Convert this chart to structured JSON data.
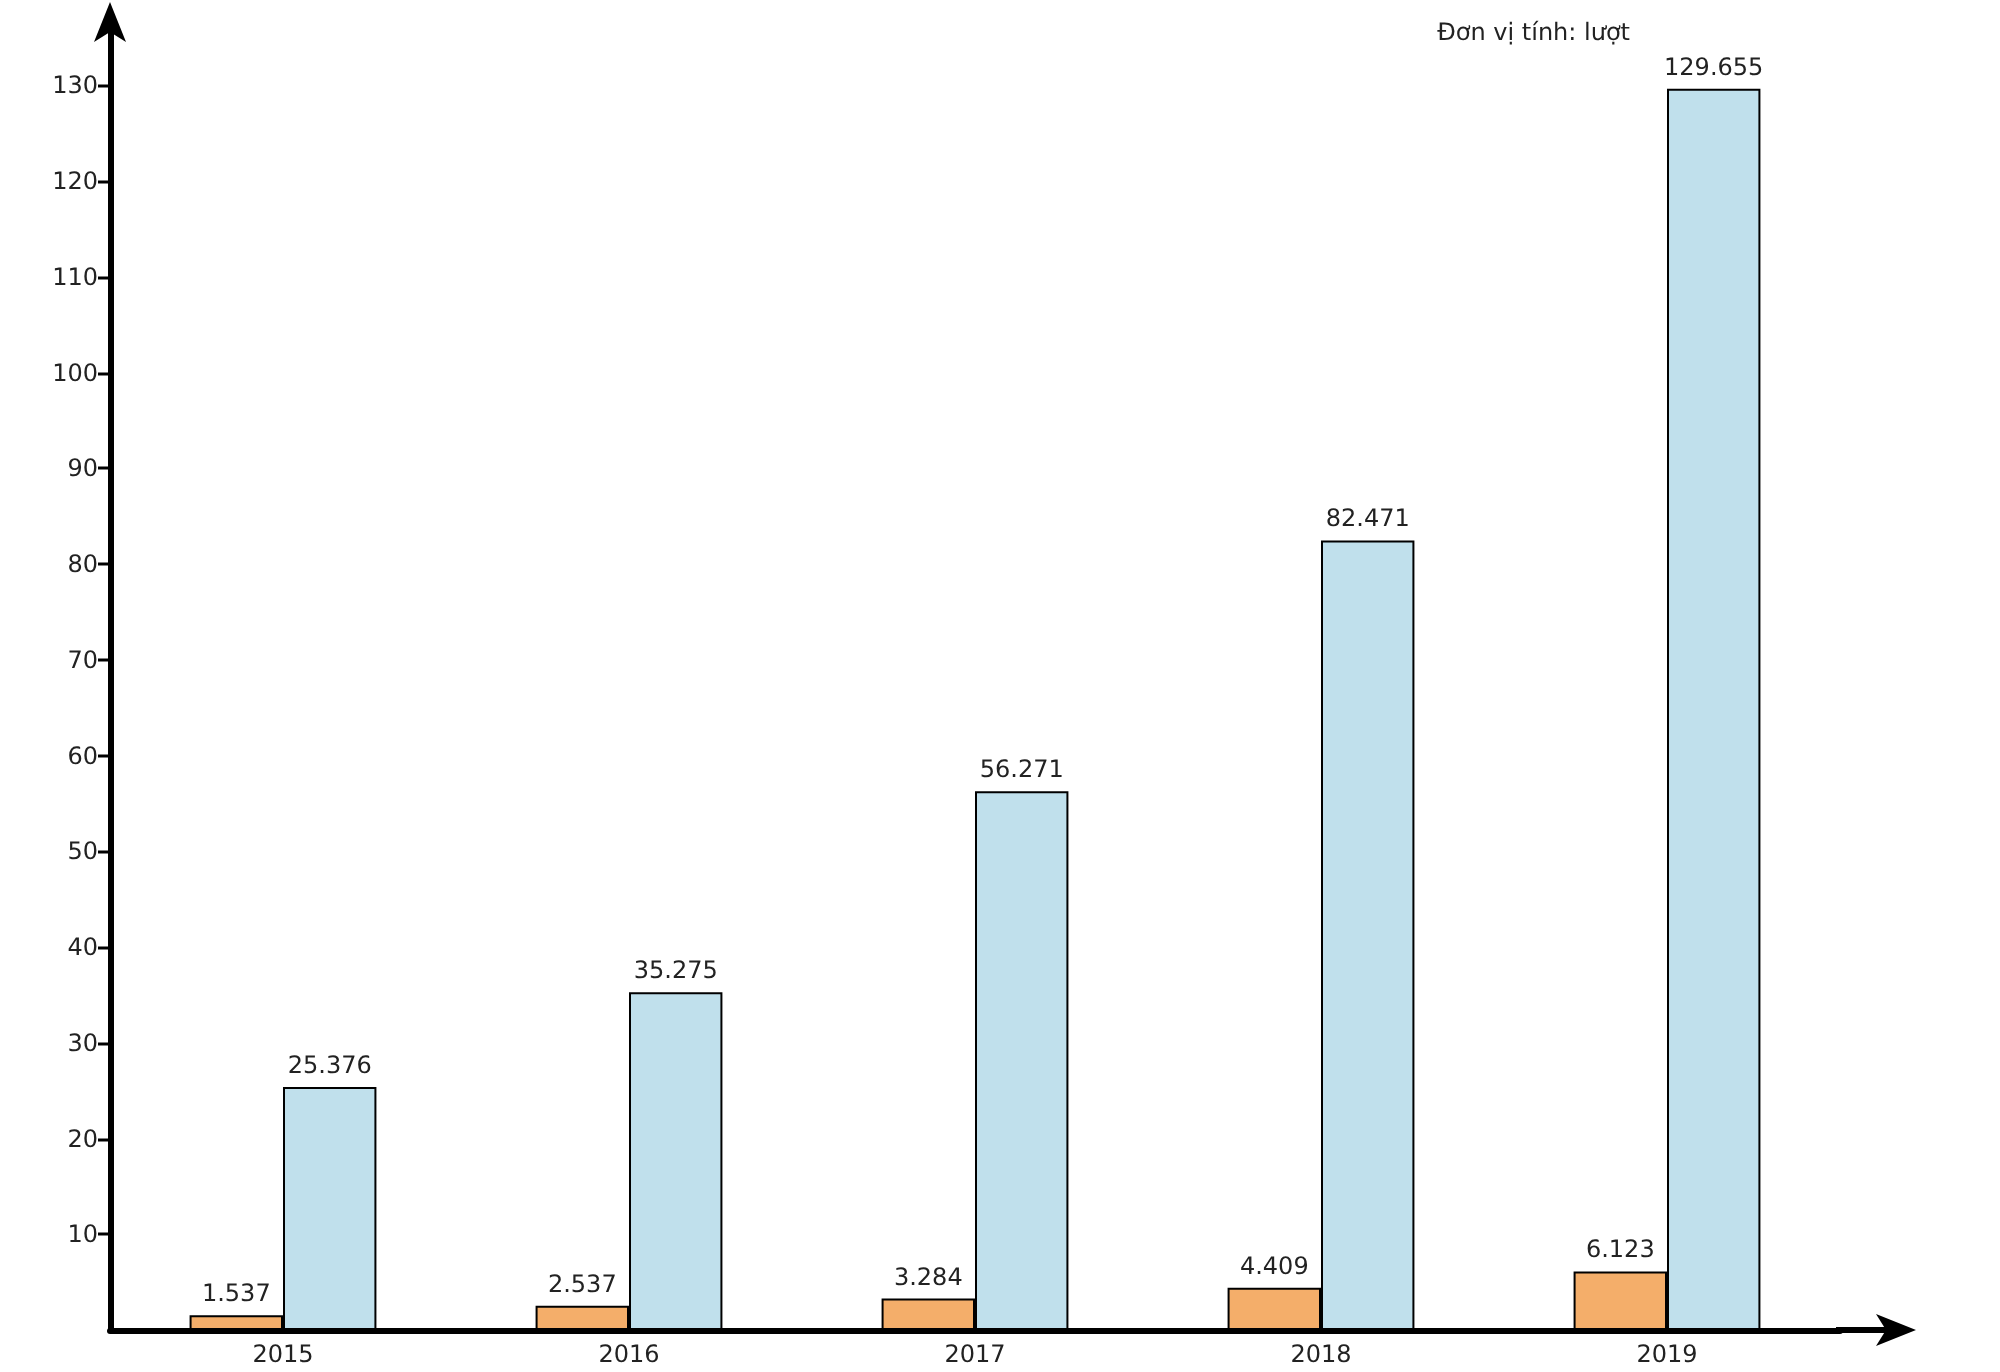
{
  "chart_data": {
    "type": "bar",
    "categories": [
      "2015",
      "2016",
      "2017",
      "2018",
      "2019"
    ],
    "series": [
      {
        "color": "#f4ae6a",
        "values": [
          1.537,
          2.537,
          3.284,
          4.409,
          6.123
        ]
      },
      {
        "color": "#c0e0ec",
        "values": [
          25.376,
          35.275,
          56.271,
          82.471,
          129.655
        ]
      }
    ],
    "ylim": [
      0,
      136
    ],
    "yticks": [
      10,
      20,
      30,
      40,
      50,
      60,
      70,
      80,
      90,
      100,
      110,
      120,
      130
    ],
    "data_labels": true,
    "annotations": [
      "Đơn vị tính: lượt"
    ]
  }
}
